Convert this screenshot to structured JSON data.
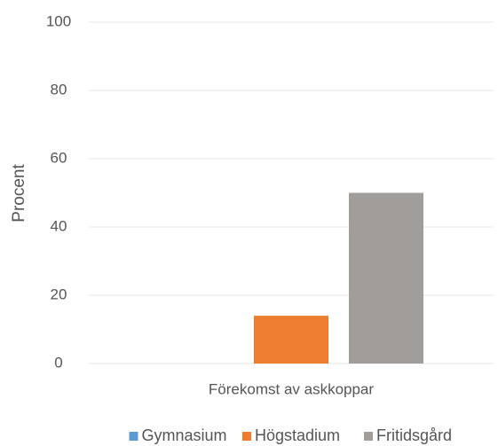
{
  "chart_data": {
    "type": "bar",
    "y_label": "Procent",
    "categories": [
      "Förekomst av askkoppar"
    ],
    "series": [
      {
        "name": "Gymnasium",
        "color": "#5b9bd5",
        "values": [
          0
        ]
      },
      {
        "name": "Högstadium",
        "color": "#ed7d31",
        "values": [
          14
        ]
      },
      {
        "name": "Fritidsgård",
        "color": "#a19d9a",
        "values": [
          50
        ]
      }
    ],
    "ylim": [
      0,
      100
    ],
    "yticks": [
      0,
      20,
      40,
      60,
      80,
      100
    ],
    "grid": true,
    "legend": "bottom"
  }
}
